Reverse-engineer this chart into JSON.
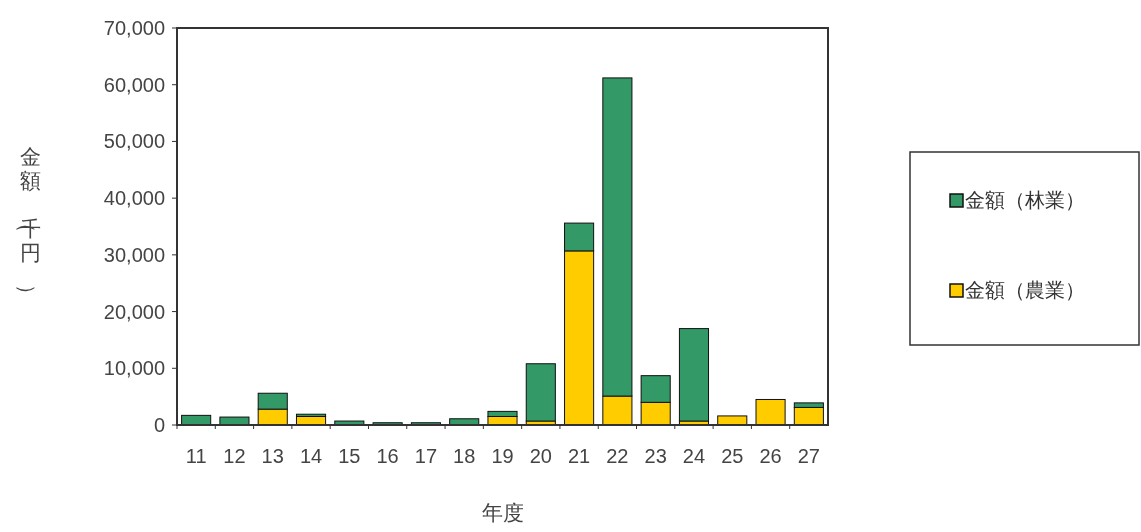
{
  "chart_data": {
    "type": "bar",
    "stacked": true,
    "xlabel": "年度",
    "ylabel": "金額（千円）",
    "categories": [
      "11",
      "12",
      "13",
      "14",
      "15",
      "16",
      "17",
      "18",
      "19",
      "20",
      "21",
      "22",
      "23",
      "24",
      "25",
      "26",
      "27"
    ],
    "series": [
      {
        "name": "金額（農業）",
        "color": "#ffcc00",
        "values": [
          0,
          0,
          2800,
          1500,
          0,
          0,
          0,
          0,
          1500,
          700,
          30700,
          5100,
          4000,
          700,
          1600,
          4500,
          3100
        ]
      },
      {
        "name": "金額（林業）",
        "color": "#339966",
        "values": [
          1700,
          1400,
          2800,
          400,
          700,
          400,
          400,
          1100,
          900,
          10100,
          4900,
          56100,
          4700,
          16300,
          0,
          0,
          800
        ]
      }
    ],
    "ylim": [
      0,
      70000
    ],
    "yticks": [
      {
        "value": 0,
        "label": "0"
      },
      {
        "value": 10000,
        "label": "10,000"
      },
      {
        "value": 20000,
        "label": "20,000"
      },
      {
        "value": 30000,
        "label": "30,000"
      },
      {
        "value": 40000,
        "label": "40,000"
      },
      {
        "value": 50000,
        "label": "50,000"
      },
      {
        "value": 60000,
        "label": "60,000"
      },
      {
        "value": 70000,
        "label": "70,000"
      }
    ],
    "grid": false,
    "legend": "right"
  }
}
